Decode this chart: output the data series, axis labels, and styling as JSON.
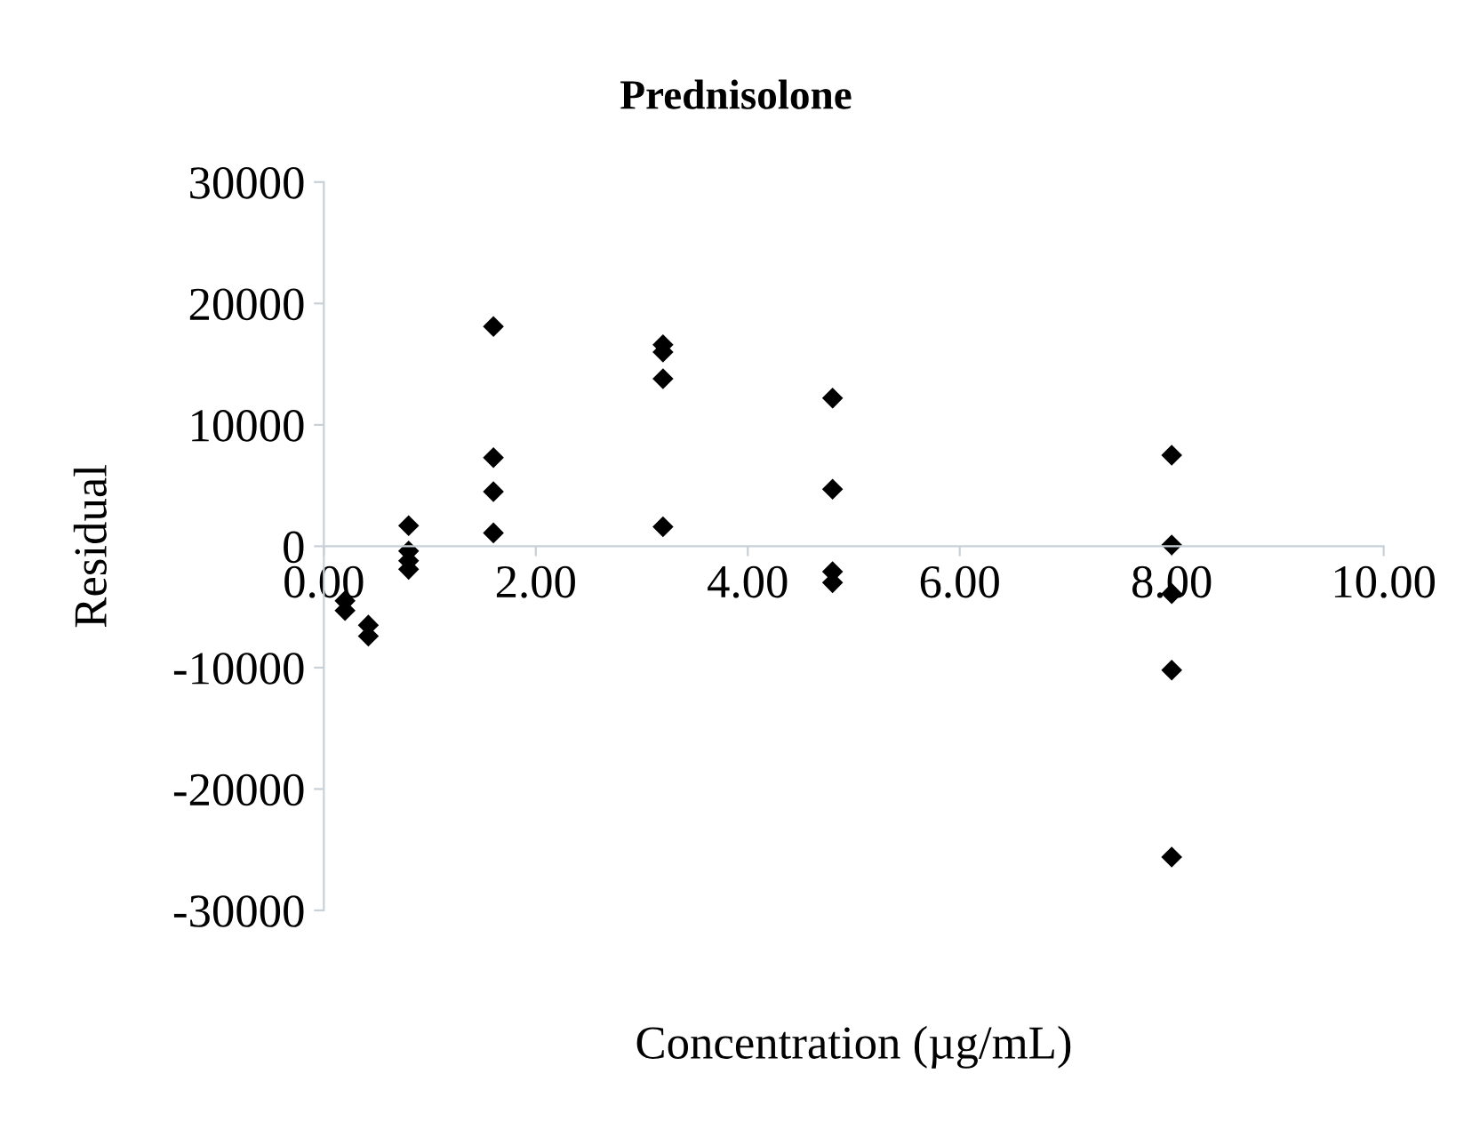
{
  "chart_data": {
    "type": "scatter",
    "title": "Prednisolone",
    "xlabel": "Concentration (µg/mL)",
    "ylabel": "Residual",
    "x": [
      0.2,
      0.2,
      0.42,
      0.42,
      0.8,
      0.8,
      0.8,
      0.8,
      1.6,
      1.6,
      1.6,
      1.6,
      3.2,
      3.2,
      3.2,
      3.2,
      4.8,
      4.8,
      4.8,
      4.8,
      8.0,
      8.0,
      8.0,
      8.0,
      8.0
    ],
    "values": [
      -4500,
      -5300,
      -6500,
      -7400,
      1700,
      -400,
      -1200,
      -1900,
      18100,
      7300,
      4500,
      1100,
      16600,
      16000,
      13800,
      1600,
      12200,
      4700,
      -2100,
      -3000,
      7500,
      100,
      -3900,
      -10200,
      -25600
    ],
    "color": "#000000",
    "marker": "diamond",
    "xlim": [
      0,
      10
    ],
    "xticks": [
      {
        "value": 0,
        "label": "0.00"
      },
      {
        "value": 2,
        "label": "2.00"
      },
      {
        "value": 4,
        "label": "4.00"
      },
      {
        "value": 6,
        "label": "6.00"
      },
      {
        "value": 8,
        "label": "8.00"
      },
      {
        "value": 10,
        "label": "10.00"
      }
    ],
    "ylim": [
      -30000,
      30000
    ],
    "yticks": [
      -30000,
      -20000,
      -10000,
      0,
      10000,
      20000,
      30000
    ],
    "grid": false,
    "legend": false
  }
}
